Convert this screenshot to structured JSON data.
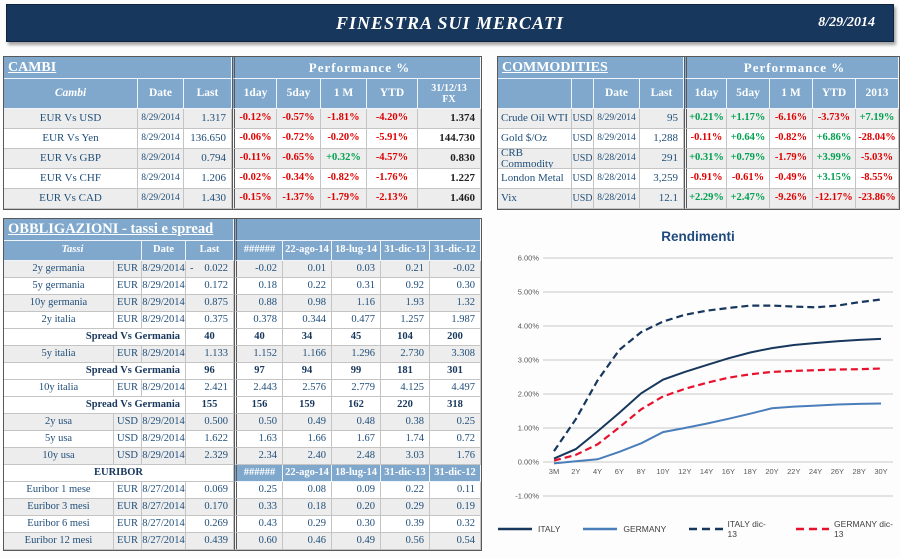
{
  "header": {
    "title": "FINESTRA SUI MERCATI",
    "date": "8/29/2014"
  },
  "colors": {
    "banner_navy": "#17375d",
    "header_steel": "#7fa8cc",
    "positive_green": "#00a050",
    "negative_red": "#e00000",
    "row_alt_gray": "#ededed",
    "text_navy": "#1f4e79",
    "italy_line": "#17375d",
    "germany_line": "#4a7ebb",
    "germany_dec13_line": "#e8112d"
  },
  "cambi": {
    "title": "CAMBI",
    "perf_header": "Performance  %",
    "columns": [
      "Cambi",
      "Date",
      "Last",
      "1day",
      "5day",
      "1 M",
      "YTD"
    ],
    "fx_header": [
      "31/12/13",
      "FX"
    ],
    "rows": [
      {
        "label": "EUR Vs USD",
        "date": "8/29/2014",
        "last": "1.317",
        "perf": [
          "-0.12%",
          "-0.57%",
          "-1.81%",
          "-4.20%"
        ],
        "fx": "1.374"
      },
      {
        "label": "EUR Vs Yen",
        "date": "8/29/2014",
        "last": "136.650",
        "perf": [
          "-0.06%",
          "-0.72%",
          "-0.20%",
          "-5.91%"
        ],
        "fx": "144.730"
      },
      {
        "label": "EUR Vs GBP",
        "date": "8/29/2014",
        "last": "0.794",
        "perf": [
          "-0.11%",
          "-0.65%",
          "+0.32%",
          "-4.57%"
        ],
        "fx": "0.830"
      },
      {
        "label": "EUR Vs CHF",
        "date": "8/29/2014",
        "last": "1.206",
        "perf": [
          "-0.02%",
          "-0.34%",
          "-0.82%",
          "-1.76%"
        ],
        "fx": "1.227"
      },
      {
        "label": "EUR Vs CAD",
        "date": "8/29/2014",
        "last": "1.430",
        "perf": [
          "-0.15%",
          "-1.37%",
          "-1.79%",
          "-2.13%"
        ],
        "fx": "1.460"
      }
    ]
  },
  "commodities": {
    "title": "COMMODITIES",
    "perf_header": "Performance  %",
    "columns": [
      "Date",
      "Last",
      "1day",
      "5day",
      "1 M",
      "YTD",
      "2013"
    ],
    "rows": [
      {
        "label": "Crude Oil WTI",
        "ccy": "USD",
        "date": "8/29/2014",
        "last": "95",
        "perf": [
          "+0.21%",
          "+1.17%",
          "-6.16%",
          "-3.73%",
          "+7.19%"
        ]
      },
      {
        "label": "Gold $/Oz",
        "ccy": "USD",
        "date": "8/29/2014",
        "last": "1,288",
        "perf": [
          "-0.11%",
          "+0.64%",
          "-0.82%",
          "+6.86%",
          "-28.04%"
        ]
      },
      {
        "label": "CRB Commodity",
        "ccy": "USD",
        "date": "8/28/2014",
        "last": "291",
        "perf": [
          "+0.31%",
          "+0.79%",
          "-1.79%",
          "+3.99%",
          "-5.03%"
        ]
      },
      {
        "label": "London Metal",
        "ccy": "USD",
        "date": "8/28/2014",
        "last": "3,259",
        "perf": [
          "-0.91%",
          "-0.61%",
          "-0.49%",
          "+3.15%",
          "-8.55%"
        ]
      },
      {
        "label": "Vix",
        "ccy": "USD",
        "date": "8/28/2014",
        "last": "12.1",
        "perf": [
          "+2.29%",
          "+2.47%",
          "-9.26%",
          "-12.17%",
          "-23.86%"
        ]
      }
    ]
  },
  "obbligazioni": {
    "title": "OBBLIGAZIONI - tassi e spread",
    "header": {
      "label": "Tassi",
      "date": "Date",
      "last": "Last",
      "cols": [
        "######",
        "22-ago-14",
        "18-lug-14",
        "31-dic-13",
        "31-dic-12"
      ]
    },
    "rows": [
      {
        "type": "data",
        "label": "2y germania",
        "ccy": "EUR",
        "date": "8/29/2014",
        "last": "0.022",
        "last_neg": true,
        "cols": [
          "-0.02",
          "0.01",
          "0.03",
          "0.21",
          "-0.02"
        ]
      },
      {
        "type": "data",
        "label": "5y germania",
        "ccy": "EUR",
        "date": "8/29/2014",
        "last": "0.172",
        "cols": [
          "0.18",
          "0.22",
          "0.31",
          "0.92",
          "0.30"
        ]
      },
      {
        "type": "data",
        "label": "10y germania",
        "ccy": "EUR",
        "date": "8/29/2014",
        "last": "0.875",
        "cols": [
          "0.88",
          "0.98",
          "1.16",
          "1.93",
          "1.32"
        ]
      },
      {
        "type": "data",
        "label": "2y italia",
        "ccy": "EUR",
        "date": "8/29/2014",
        "last": "0.375",
        "cols": [
          "0.378",
          "0.344",
          "0.477",
          "1.257",
          "1.987"
        ]
      },
      {
        "type": "spread",
        "label": "Spread Vs Germania",
        "last": "40",
        "cols": [
          "40",
          "34",
          "45",
          "104",
          "200"
        ]
      },
      {
        "type": "data",
        "label": "5y italia",
        "ccy": "EUR",
        "date": "8/29/2014",
        "last": "1.133",
        "cols": [
          "1.152",
          "1.166",
          "1.296",
          "2.730",
          "3.308"
        ]
      },
      {
        "type": "spread",
        "label": "Spread Vs Germania",
        "last": "96",
        "cols": [
          "97",
          "94",
          "99",
          "181",
          "301"
        ]
      },
      {
        "type": "data",
        "label": "10y italia",
        "ccy": "EUR",
        "date": "8/29/2014",
        "last": "2.421",
        "cols": [
          "2.443",
          "2.576",
          "2.779",
          "4.125",
          "4.497"
        ]
      },
      {
        "type": "spread",
        "label": "Spread Vs Germania",
        "last": "155",
        "cols": [
          "156",
          "159",
          "162",
          "220",
          "318"
        ]
      },
      {
        "type": "data",
        "label": "2y usa",
        "ccy": "USD",
        "date": "8/29/2014",
        "last": "0.500",
        "cols": [
          "0.50",
          "0.49",
          "0.48",
          "0.38",
          "0.25"
        ]
      },
      {
        "type": "data",
        "label": "5y usa",
        "ccy": "USD",
        "date": "8/29/2014",
        "last": "1.622",
        "cols": [
          "1.63",
          "1.66",
          "1.67",
          "1.74",
          "0.72"
        ]
      },
      {
        "type": "data",
        "label": "10y usa",
        "ccy": "USD",
        "date": "8/29/2014",
        "last": "2.329",
        "cols": [
          "2.34",
          "2.40",
          "2.48",
          "3.03",
          "1.76"
        ]
      },
      {
        "type": "section",
        "label": "EURIBOR",
        "cols": [
          "######",
          "22-ago-14",
          "18-lug-14",
          "31-dic-13",
          "31-dic-12"
        ]
      },
      {
        "type": "data",
        "label": "Euribor 1 mese",
        "ccy": "EUR",
        "date": "8/27/2014",
        "last": "0.069",
        "cols": [
          "0.25",
          "0.08",
          "0.09",
          "0.22",
          "0.11"
        ]
      },
      {
        "type": "data",
        "label": "Euribor 3 mesi",
        "ccy": "EUR",
        "date": "8/27/2014",
        "last": "0.170",
        "cols": [
          "0.33",
          "0.18",
          "0.20",
          "0.29",
          "0.19"
        ]
      },
      {
        "type": "data",
        "label": "Euribor 6 mesi",
        "ccy": "EUR",
        "date": "8/27/2014",
        "last": "0.269",
        "cols": [
          "0.43",
          "0.29",
          "0.30",
          "0.39",
          "0.32"
        ]
      },
      {
        "type": "data",
        "label": "Euribor 12 mesi",
        "ccy": "EUR",
        "date": "8/27/2014",
        "last": "0.439",
        "cols": [
          "0.60",
          "0.46",
          "0.49",
          "0.56",
          "0.54"
        ]
      }
    ]
  },
  "chart_data": {
    "type": "line",
    "title": "Rendimenti",
    "x_labels": [
      "3M",
      "2Y",
      "4Y",
      "6Y",
      "8Y",
      "10Y",
      "12Y",
      "14Y",
      "16Y",
      "18Y",
      "20Y",
      "22Y",
      "24Y",
      "26Y",
      "28Y",
      "30Y"
    ],
    "y_ticks": [
      "6.00%",
      "5.00%",
      "4.00%",
      "3.00%",
      "2.00%",
      "1.00%",
      "0.00%",
      "-1.00%"
    ],
    "ylim": [
      -1,
      6
    ],
    "grid": "horizontal",
    "legend_position": "bottom",
    "series": [
      {
        "name": "ITALY",
        "color": "#17375d",
        "dash": false,
        "values": [
          0.1,
          0.38,
          0.9,
          1.45,
          2.02,
          2.42,
          2.65,
          2.85,
          3.05,
          3.22,
          3.35,
          3.44,
          3.5,
          3.55,
          3.59,
          3.62
        ]
      },
      {
        "name": "GERMANY",
        "color": "#4a7ebb",
        "dash": false,
        "values": [
          -0.04,
          0.02,
          0.08,
          0.3,
          0.55,
          0.88,
          1.0,
          1.13,
          1.27,
          1.42,
          1.58,
          1.63,
          1.66,
          1.69,
          1.71,
          1.72
        ]
      },
      {
        "name": "ITALY dic-13",
        "color": "#17375d",
        "dash": true,
        "values": [
          0.32,
          1.26,
          2.4,
          3.3,
          3.82,
          4.13,
          4.33,
          4.45,
          4.53,
          4.6,
          4.6,
          4.57,
          4.55,
          4.6,
          4.7,
          4.78
        ]
      },
      {
        "name": "GERMANY dic-13",
        "color": "#e8112d",
        "dash": true,
        "values": [
          0.04,
          0.21,
          0.52,
          1.02,
          1.55,
          1.93,
          2.15,
          2.33,
          2.48,
          2.58,
          2.65,
          2.68,
          2.7,
          2.72,
          2.73,
          2.75
        ]
      }
    ]
  }
}
